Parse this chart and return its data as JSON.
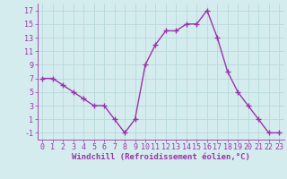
{
  "x": [
    0,
    1,
    2,
    3,
    4,
    5,
    6,
    7,
    8,
    9,
    10,
    11,
    12,
    13,
    14,
    15,
    16,
    17,
    18,
    19,
    20,
    21,
    22,
    23
  ],
  "y": [
    7,
    7,
    6,
    5,
    4,
    3,
    3,
    1,
    -1,
    1,
    9,
    12,
    14,
    14,
    15,
    15,
    17,
    13,
    8,
    5,
    3,
    1,
    -1,
    -1
  ],
  "line_color": "#9933aa",
  "marker": "+",
  "marker_size": 4,
  "marker_lw": 1.0,
  "bg_color": "#d5ecee",
  "grid_color": "#b8d8dc",
  "xlabel": "Windchill (Refroidissement éolien,°C)",
  "xlabel_color": "#9933aa",
  "xlabel_fontsize": 6.5,
  "tick_color": "#9933aa",
  "tick_fontsize": 6.0,
  "yticks": [
    -1,
    1,
    3,
    5,
    7,
    9,
    11,
    13,
    15,
    17
  ],
  "xticks": [
    0,
    1,
    2,
    3,
    4,
    5,
    6,
    7,
    8,
    9,
    10,
    11,
    12,
    13,
    14,
    15,
    16,
    17,
    18,
    19,
    20,
    21,
    22,
    23
  ],
  "ylim": [
    -2.0,
    18.0
  ],
  "xlim": [
    -0.5,
    23.5
  ],
  "linewidth": 1.0
}
